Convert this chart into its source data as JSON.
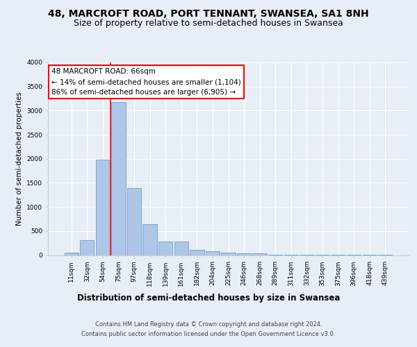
{
  "title": "48, MARCROFT ROAD, PORT TENNANT, SWANSEA, SA1 8NH",
  "subtitle": "Size of property relative to semi-detached houses in Swansea",
  "xlabel": "Distribution of semi-detached houses by size in Swansea",
  "ylabel": "Number of semi-detached properties",
  "footer_line1": "Contains HM Land Registry data © Crown copyright and database right 2024.",
  "footer_line2": "Contains public sector information licensed under the Open Government Licence v3.0.",
  "categories": [
    "11sqm",
    "32sqm",
    "54sqm",
    "75sqm",
    "97sqm",
    "118sqm",
    "139sqm",
    "161sqm",
    "182sqm",
    "204sqm",
    "225sqm",
    "246sqm",
    "268sqm",
    "289sqm",
    "311sqm",
    "332sqm",
    "353sqm",
    "375sqm",
    "396sqm",
    "418sqm",
    "439sqm"
  ],
  "values": [
    50,
    310,
    1980,
    3180,
    1390,
    640,
    280,
    280,
    110,
    75,
    50,
    40,
    30,
    10,
    5,
    3,
    2,
    2,
    1,
    1,
    1
  ],
  "bar_color": "#aec6e8",
  "bar_edge_color": "#6a9fd0",
  "vline_x_pos": 2.5,
  "vline_color": "red",
  "annotation_line1": "48 MARCROFT ROAD: 66sqm",
  "annotation_line2": "← 14% of semi-detached houses are smaller (1,104)",
  "annotation_line3": "86% of semi-detached houses are larger (6,905) →",
  "annotation_box_color": "white",
  "annotation_box_edge_color": "red",
  "ylim": [
    0,
    4000
  ],
  "yticks": [
    0,
    500,
    1000,
    1500,
    2000,
    2500,
    3000,
    3500,
    4000
  ],
  "bg_color": "#e8eef5",
  "title_fontsize": 10,
  "subtitle_fontsize": 9,
  "xlabel_fontsize": 8.5,
  "ylabel_fontsize": 7.5,
  "tick_fontsize": 6.5,
  "annotation_fontsize": 7.5,
  "footer_fontsize": 6
}
